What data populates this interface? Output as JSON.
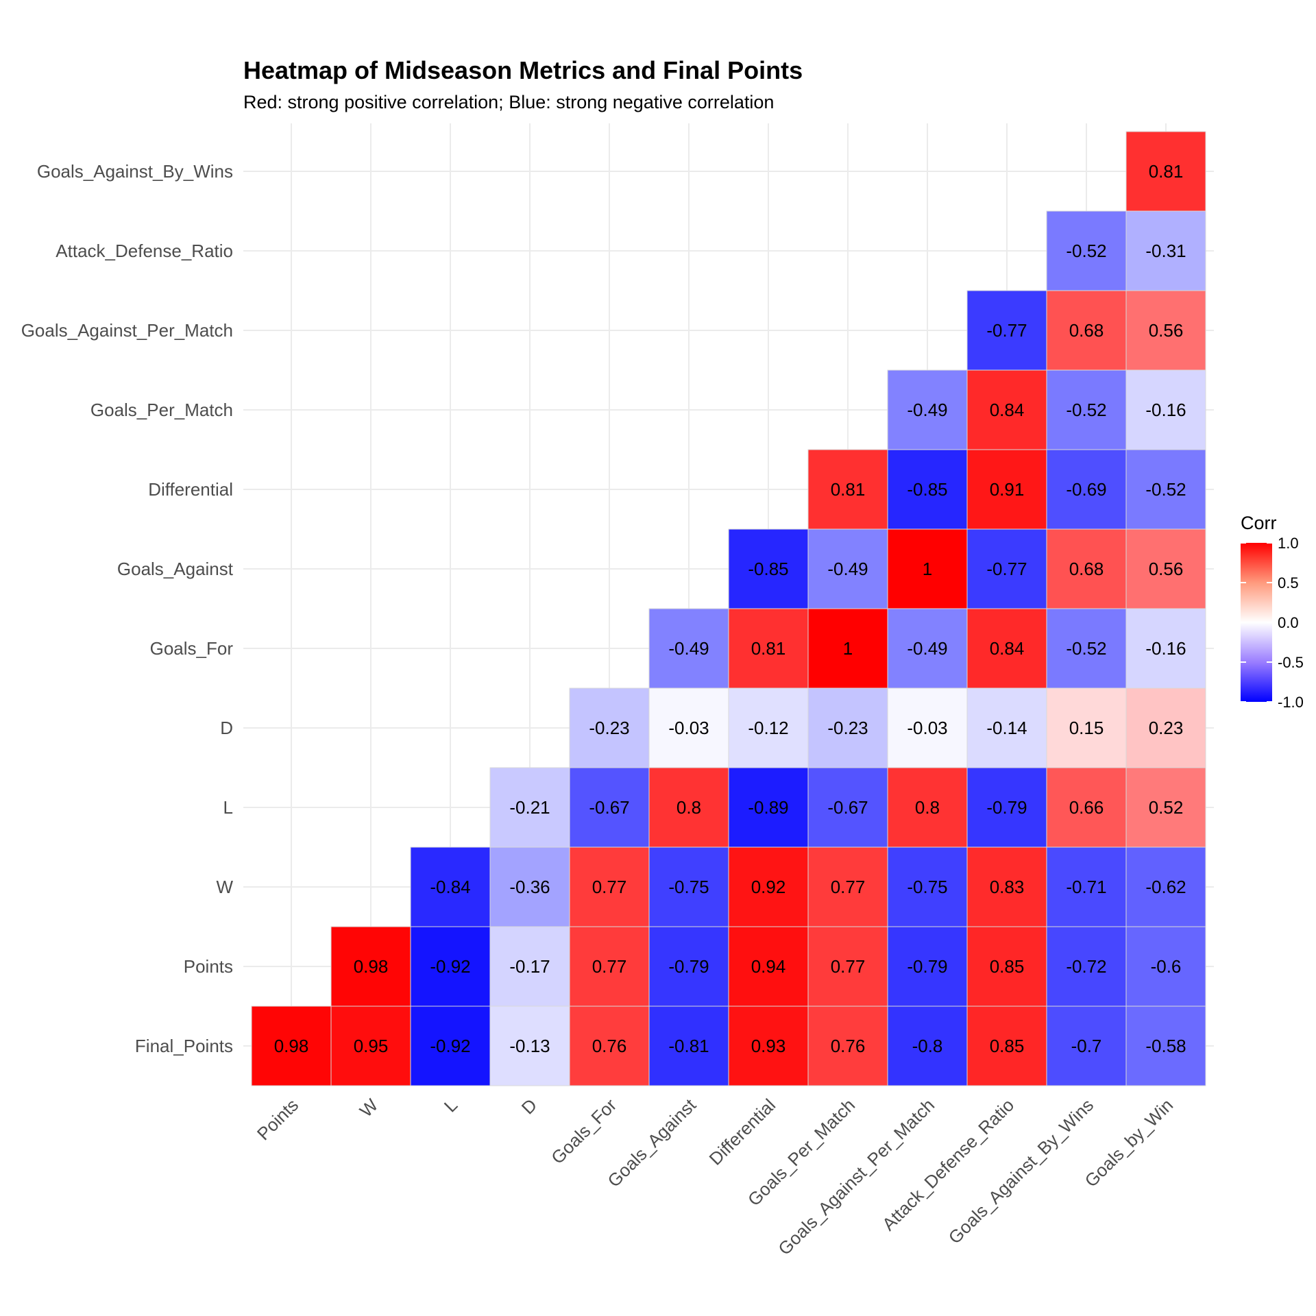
{
  "chart_data": {
    "type": "heatmap",
    "title": "Heatmap of Midseason Metrics and Final Points",
    "subtitle": "Red: strong positive correlation; Blue: strong negative correlation",
    "x_categories": [
      "Points",
      "W",
      "L",
      "D",
      "Goals_For",
      "Goals_Against",
      "Differential",
      "Goals_Per_Match",
      "Goals_Against_Per_Match",
      "Attack_Defense_Ratio",
      "Goals_Against_By_Wins",
      "Goals_by_Win"
    ],
    "y_categories": [
      "Final_Points",
      "Points",
      "W",
      "L",
      "D",
      "Goals_For",
      "Goals_Against",
      "Differential",
      "Goals_Per_Match",
      "Goals_Against_Per_Match",
      "Attack_Defense_Ratio",
      "Goals_Against_By_Wins"
    ],
    "rows": [
      {
        "y": "Final_Points",
        "start_col": 0,
        "values": [
          0.98,
          0.95,
          -0.92,
          -0.13,
          0.76,
          -0.81,
          0.93,
          0.76,
          -0.8,
          0.85,
          -0.7,
          -0.58
        ]
      },
      {
        "y": "Points",
        "start_col": 1,
        "values": [
          0.98,
          -0.92,
          -0.17,
          0.77,
          -0.79,
          0.94,
          0.77,
          -0.79,
          0.85,
          -0.72,
          -0.6
        ]
      },
      {
        "y": "W",
        "start_col": 2,
        "values": [
          -0.84,
          -0.36,
          0.77,
          -0.75,
          0.92,
          0.77,
          -0.75,
          0.83,
          -0.71,
          -0.62
        ]
      },
      {
        "y": "L",
        "start_col": 3,
        "values": [
          -0.21,
          -0.67,
          0.8,
          -0.89,
          -0.67,
          0.8,
          -0.79,
          0.66,
          0.52
        ]
      },
      {
        "y": "D",
        "start_col": 4,
        "values": [
          -0.23,
          -0.03,
          -0.12,
          -0.23,
          -0.03,
          -0.14,
          0.15,
          0.23
        ]
      },
      {
        "y": "Goals_For",
        "start_col": 5,
        "values": [
          -0.49,
          0.81,
          1,
          -0.49,
          0.84,
          -0.52,
          -0.16
        ]
      },
      {
        "y": "Goals_Against",
        "start_col": 6,
        "values": [
          -0.85,
          -0.49,
          1,
          -0.77,
          0.68,
          0.56
        ]
      },
      {
        "y": "Differential",
        "start_col": 7,
        "values": [
          0.81,
          -0.85,
          0.91,
          -0.69,
          -0.52
        ]
      },
      {
        "y": "Goals_Per_Match",
        "start_col": 8,
        "values": [
          -0.49,
          0.84,
          -0.52,
          -0.16
        ]
      },
      {
        "y": "Goals_Against_Per_Match",
        "start_col": 9,
        "values": [
          -0.77,
          0.68,
          0.56
        ]
      },
      {
        "y": "Attack_Defense_Ratio",
        "start_col": 10,
        "values": [
          -0.52,
          -0.31
        ]
      },
      {
        "y": "Goals_Against_By_Wins",
        "start_col": 11,
        "values": [
          0.81
        ]
      }
    ],
    "color_scale": {
      "low": "#0000ff",
      "mid": "#ffffff",
      "high": "#ff0000",
      "limits": [
        -1,
        1
      ]
    },
    "legend": {
      "title": "Corr",
      "ticks": [
        "1.0",
        "0.5",
        "0.0",
        "-0.5",
        "-1.0"
      ],
      "tick_values": [
        1,
        0.5,
        0,
        -0.5,
        -1
      ],
      "position": "right"
    },
    "grid": true,
    "grid_color": "#ebebeb"
  }
}
